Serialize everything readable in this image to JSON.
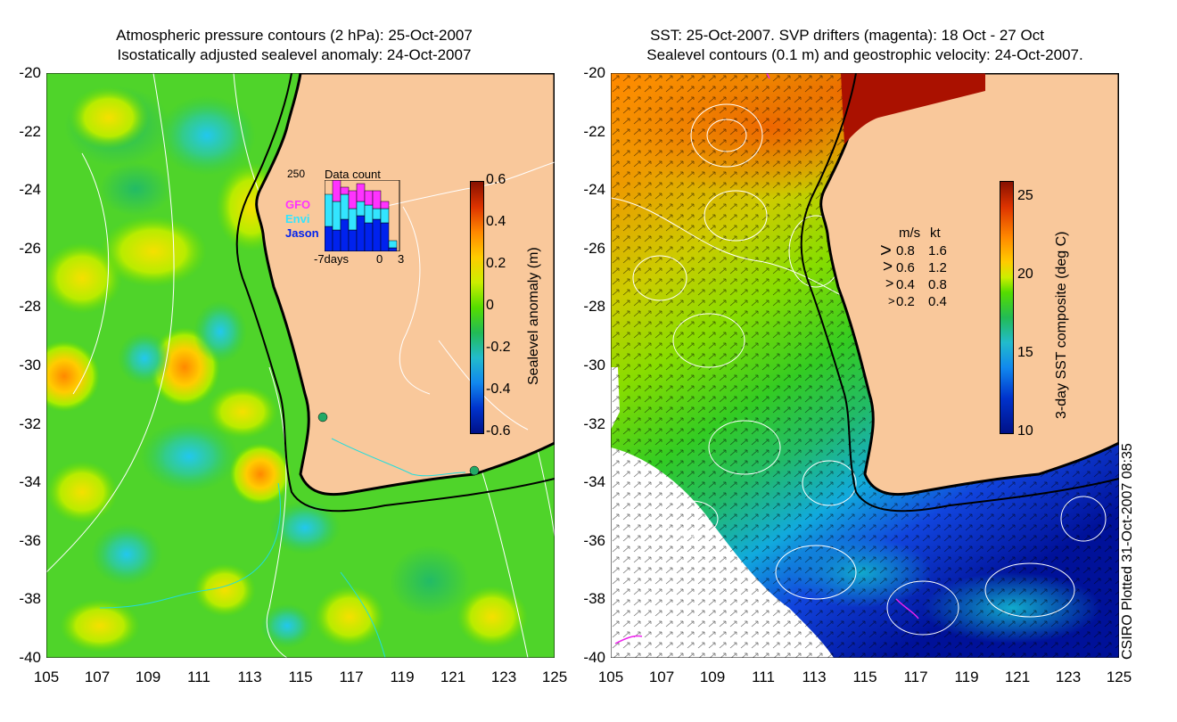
{
  "left_panel": {
    "title_line1": "Atmospheric pressure contours (2 hPa): 25-Oct-2007",
    "title_line2": "Isostatically adjusted sealevel anomaly: 24-Oct-2007",
    "y_ticks": [
      "-20",
      "-22",
      "-24",
      "-26",
      "-28",
      "-30",
      "-32",
      "-34",
      "-36",
      "-38",
      "-40"
    ],
    "x_ticks": [
      "105",
      "107",
      "109",
      "111",
      "113",
      "115",
      "117",
      "119",
      "121",
      "123",
      "125"
    ],
    "colorbar": {
      "label": "Sealevel anomaly (m)",
      "ticks": [
        "0.6",
        "0.4",
        "0.2",
        "0",
        "-0.2",
        "-0.4",
        "-0.6"
      ],
      "range": [
        -0.6,
        0.6
      ]
    },
    "inset": {
      "title": "Data count",
      "ymax_label": "250",
      "legend": [
        {
          "name": "GFO",
          "color": "#ff33ff"
        },
        {
          "name": "Envi",
          "color": "#33e5ff"
        },
        {
          "name": "Jason",
          "color": "#0022ee"
        }
      ],
      "x_labels": [
        "-7days",
        "0",
        "3"
      ],
      "bars": [
        {
          "jason": 0.35,
          "envi": 0.45,
          "gfo": 0.0
        },
        {
          "jason": 0.3,
          "envi": 0.4,
          "gfo": 0.35
        },
        {
          "jason": 0.45,
          "envi": 0.35,
          "gfo": 0.1
        },
        {
          "jason": 0.3,
          "envi": 0.3,
          "gfo": 0.25
        },
        {
          "jason": 0.5,
          "envi": 0.2,
          "gfo": 0.25
        },
        {
          "jason": 0.4,
          "envi": 0.25,
          "gfo": 0.2
        },
        {
          "jason": 0.45,
          "envi": 0.15,
          "gfo": 0.25
        },
        {
          "jason": 0.4,
          "envi": 0.2,
          "gfo": 0.1
        },
        {
          "jason": 0.05,
          "envi": 0.1,
          "gfo": 0.0
        }
      ]
    }
  },
  "right_panel": {
    "title_line1": "SST: 25-Oct-2007. SVP drifters (magenta): 18 Oct - 27 Oct",
    "title_line2": "Sealevel contours (0.1 m) and geostrophic velocity: 24-Oct-2007.",
    "y_ticks": [
      "-20",
      "-22",
      "-24",
      "-26",
      "-28",
      "-30",
      "-32",
      "-34",
      "-36",
      "-38",
      "-40"
    ],
    "x_ticks": [
      "105",
      "107",
      "109",
      "111",
      "113",
      "115",
      "117",
      "119",
      "121",
      "123",
      "125"
    ],
    "colorbar": {
      "label": "3-day SST composite (deg C)",
      "ticks": [
        "25",
        "20",
        "15",
        "10"
      ],
      "range": [
        10,
        26
      ]
    },
    "velocity_key": {
      "header_ms": "m/s",
      "header_kt": "kt",
      "rows": [
        {
          "ms": "0.8",
          "kt": "1.6"
        },
        {
          "ms": "0.6",
          "kt": "1.2"
        },
        {
          "ms": "0.4",
          "kt": "0.8"
        },
        {
          "ms": "0.2",
          "kt": "0.4"
        }
      ]
    }
  },
  "credit": "CSIRO Plotted 31-Oct-2007 08:35",
  "colors": {
    "land": "#f9c89b",
    "coast": "#000000",
    "contour": "#ffffff",
    "river": "#22dddd",
    "drifter": "#ee22ee"
  }
}
